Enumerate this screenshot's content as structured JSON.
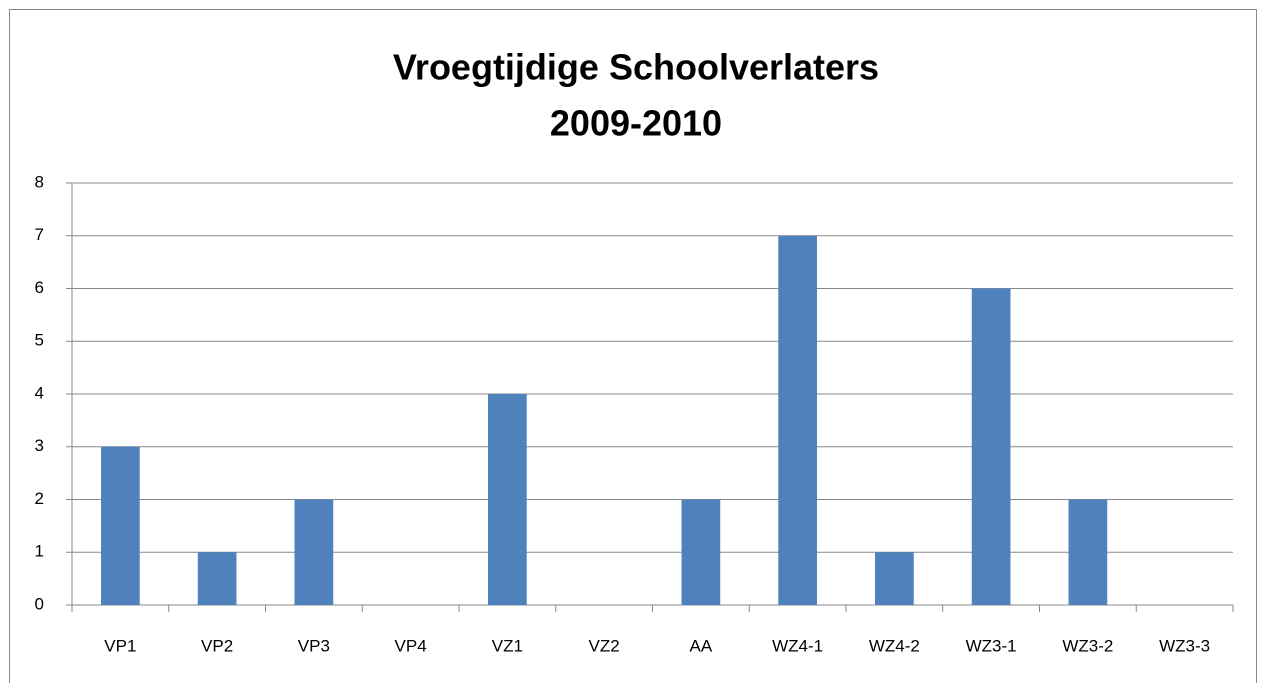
{
  "chart_data": {
    "type": "bar",
    "title": [
      "Vroegtijdige Schoolverlaters",
      "2009-2010"
    ],
    "categories": [
      "VP1",
      "VP2",
      "VP3",
      "VP4",
      "VZ1",
      "VZ2",
      "AA",
      "WZ4-1",
      "WZ4-2",
      "WZ3-1",
      "WZ3-2",
      "WZ3-3"
    ],
    "values": [
      3,
      1,
      2,
      0,
      4,
      0,
      2,
      7,
      1,
      6,
      2,
      0
    ],
    "color": "#4f81bd",
    "ylim": [
      0,
      8
    ],
    "yticks": [
      0,
      1,
      2,
      3,
      4,
      5,
      6,
      7,
      8
    ],
    "grid": true
  }
}
